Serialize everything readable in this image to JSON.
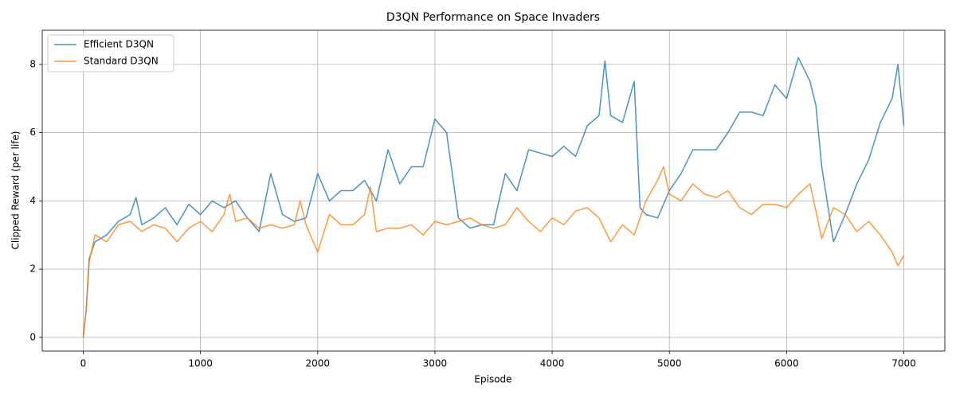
{
  "chart_data": {
    "type": "line",
    "title": "D3QN Performance on Space Invaders",
    "x_label": "Episode",
    "y_label": "Clipped Reward (per life)",
    "xlim": [
      -350,
      7350
    ],
    "ylim": [
      -0.4,
      9.0
    ],
    "xticks": [
      0,
      1000,
      2000,
      3000,
      4000,
      5000,
      6000,
      7000
    ],
    "yticks": [
      0,
      2,
      4,
      6,
      8
    ],
    "grid": true,
    "legend": "upper-left",
    "series": [
      {
        "name": "Efficient D3QN",
        "color": "#1f77b4",
        "x": [
          0,
          25,
          50,
          100,
          200,
          300,
          400,
          450,
          500,
          600,
          700,
          800,
          900,
          1000,
          1100,
          1200,
          1300,
          1400,
          1500,
          1600,
          1700,
          1800,
          1900,
          2000,
          2100,
          2200,
          2300,
          2400,
          2500,
          2600,
          2700,
          2800,
          2900,
          3000,
          3100,
          3200,
          3300,
          3400,
          3500,
          3600,
          3700,
          3800,
          3900,
          4000,
          4100,
          4200,
          4300,
          4400,
          4450,
          4500,
          4600,
          4700,
          4750,
          4800,
          4900,
          5000,
          5100,
          5200,
          5300,
          5400,
          5500,
          5600,
          5700,
          5800,
          5900,
          6000,
          6100,
          6200,
          6250,
          6300,
          6400,
          6500,
          6600,
          6700,
          6800,
          6900,
          6950,
          7000
        ],
        "values": [
          0,
          0.8,
          2.3,
          2.8,
          3.0,
          3.4,
          3.6,
          4.1,
          3.3,
          3.5,
          3.8,
          3.3,
          3.9,
          3.6,
          4.0,
          3.8,
          4.0,
          3.5,
          3.1,
          4.8,
          3.6,
          3.4,
          3.5,
          4.8,
          4.0,
          4.3,
          4.3,
          4.6,
          4.0,
          5.5,
          4.5,
          5.0,
          5.0,
          6.4,
          6.0,
          3.5,
          3.2,
          3.3,
          3.3,
          4.8,
          4.3,
          5.5,
          5.4,
          5.3,
          5.6,
          5.3,
          6.2,
          6.5,
          8.1,
          6.5,
          6.3,
          7.5,
          3.8,
          3.6,
          3.5,
          4.3,
          4.8,
          5.5,
          5.5,
          5.5,
          6.0,
          6.6,
          6.6,
          6.5,
          7.4,
          7.0,
          8.2,
          7.5,
          6.8,
          5.0,
          2.8,
          3.6,
          4.5,
          5.2,
          6.3,
          7.0,
          8.0,
          6.2
        ]
      },
      {
        "name": "Standard D3QN",
        "color": "#ff7f0e",
        "x": [
          0,
          25,
          50,
          100,
          200,
          300,
          400,
          500,
          600,
          700,
          800,
          900,
          1000,
          1100,
          1200,
          1250,
          1300,
          1400,
          1500,
          1600,
          1700,
          1800,
          1850,
          1900,
          2000,
          2100,
          2200,
          2300,
          2400,
          2450,
          2500,
          2600,
          2700,
          2800,
          2900,
          3000,
          3100,
          3200,
          3300,
          3400,
          3500,
          3600,
          3700,
          3800,
          3900,
          4000,
          4100,
          4200,
          4300,
          4400,
          4500,
          4600,
          4700,
          4800,
          4900,
          4950,
          5000,
          5100,
          5200,
          5300,
          5400,
          5500,
          5600,
          5700,
          5800,
          5900,
          6000,
          6100,
          6200,
          6300,
          6400,
          6500,
          6600,
          6700,
          6800,
          6900,
          6950,
          7000
        ],
        "values": [
          0,
          0.8,
          2.2,
          3.0,
          2.8,
          3.3,
          3.4,
          3.1,
          3.3,
          3.2,
          2.8,
          3.2,
          3.4,
          3.1,
          3.6,
          4.2,
          3.4,
          3.5,
          3.2,
          3.3,
          3.2,
          3.3,
          4.0,
          3.3,
          2.5,
          3.6,
          3.3,
          3.3,
          3.6,
          4.4,
          3.1,
          3.2,
          3.2,
          3.3,
          3.0,
          3.4,
          3.3,
          3.4,
          3.5,
          3.3,
          3.2,
          3.3,
          3.8,
          3.4,
          3.1,
          3.5,
          3.3,
          3.7,
          3.8,
          3.5,
          2.8,
          3.3,
          3.0,
          4.0,
          4.6,
          5.0,
          4.2,
          4.0,
          4.5,
          4.2,
          4.1,
          4.3,
          3.8,
          3.6,
          3.9,
          3.9,
          3.8,
          4.2,
          4.5,
          2.9,
          3.8,
          3.6,
          3.1,
          3.4,
          3.0,
          2.5,
          2.1,
          2.4
        ]
      }
    ]
  }
}
